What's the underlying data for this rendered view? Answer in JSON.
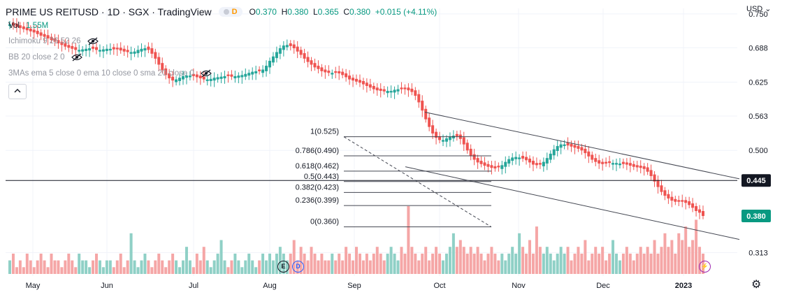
{
  "header": {
    "symbol": "PRIME US REITUSD · 1D · SGX · TradingView",
    "currency_badge": "D",
    "ohlc": {
      "o_label": "O",
      "o": "0.370",
      "h_label": "H",
      "h": "0.380",
      "l_label": "L",
      "l": "0.365",
      "c_label": "C",
      "c": "0.380",
      "change": "+0.015 (+4.11%)"
    }
  },
  "legend": {
    "vol_label": "Vol",
    "vol_value": "1.55M",
    "ichimoku": "Ichimoku 9 26 52 26",
    "bb": "BB 20 close 2 0",
    "mas": "3MAs ema 5 close 0 ema 10 close 0 sma 20 close 0"
  },
  "currency": "USD",
  "colors": {
    "up": "#26a69a",
    "down": "#ef5350",
    "vol_up": "#8fd0c6",
    "vol_down": "#f5a6a6",
    "price_tag_bg": "#089981"
  },
  "event_markers": [
    {
      "label": "E",
      "color": "#131722"
    },
    {
      "label": "D",
      "color": "#2962ff"
    }
  ],
  "chart_data": {
    "type": "candlestick",
    "y_ticks": [
      "0.750",
      "0.688",
      "0.625",
      "0.563",
      "0.500",
      "0.445",
      "0.380",
      "0.313"
    ],
    "y_range": [
      0.27,
      0.76
    ],
    "x_ticks": [
      "May",
      "Jun",
      "Jul",
      "Aug",
      "Sep",
      "Oct",
      "Nov",
      "Dec",
      "2023"
    ],
    "last_price": "0.380",
    "horizontal_line_label": "0.445",
    "horizontal_line_value": 0.445,
    "fib_levels": [
      {
        "label": "1(0.525)",
        "value": 0.525
      },
      {
        "label": "0.786(0.490)",
        "value": 0.49
      },
      {
        "label": "0.618(0.462)",
        "value": 0.462
      },
      {
        "label": "0.5(0.443)",
        "value": 0.443
      },
      {
        "label": "0.382(0.423)",
        "value": 0.423
      },
      {
        "label": "0.236(0.399)",
        "value": 0.399
      },
      {
        "label": "0(0.360)",
        "value": 0.36
      }
    ],
    "candles_close": [
      0.731,
      0.729,
      0.726,
      0.724,
      0.722,
      0.72,
      0.718,
      0.716,
      0.713,
      0.71,
      0.708,
      0.705,
      0.702,
      0.699,
      0.696,
      0.693,
      0.69,
      0.688,
      0.686,
      0.684,
      0.684,
      0.685,
      0.686,
      0.687,
      0.686,
      0.684,
      0.684,
      0.685,
      0.686,
      0.686,
      0.685,
      0.685,
      0.683,
      0.681,
      0.68,
      0.68,
      0.681,
      0.684,
      0.686,
      0.687,
      0.684,
      0.677,
      0.668,
      0.657,
      0.647,
      0.638,
      0.632,
      0.628,
      0.63,
      0.633,
      0.636,
      0.637,
      0.637,
      0.636,
      0.634,
      0.632,
      0.63,
      0.63,
      0.631,
      0.633,
      0.634,
      0.635,
      0.636,
      0.636,
      0.635,
      0.636,
      0.637,
      0.638,
      0.64,
      0.642,
      0.644,
      0.645,
      0.645,
      0.648,
      0.655,
      0.664,
      0.672,
      0.68,
      0.687,
      0.692,
      0.693,
      0.691,
      0.687,
      0.681,
      0.675,
      0.668,
      0.662,
      0.657,
      0.652,
      0.649,
      0.645,
      0.643,
      0.642,
      0.642,
      0.642,
      0.641,
      0.638,
      0.634,
      0.63,
      0.628,
      0.626,
      0.624,
      0.621,
      0.618,
      0.615,
      0.612,
      0.61,
      0.609,
      0.608,
      0.609,
      0.609,
      0.611,
      0.612,
      0.612,
      0.612,
      0.61,
      0.607,
      0.6,
      0.588,
      0.573,
      0.557,
      0.543,
      0.531,
      0.523,
      0.519,
      0.519,
      0.522,
      0.525,
      0.527,
      0.526,
      0.521,
      0.511,
      0.5,
      0.49,
      0.483,
      0.478,
      0.475,
      0.472,
      0.47,
      0.468,
      0.467,
      0.469,
      0.473,
      0.479,
      0.484,
      0.487,
      0.488,
      0.487,
      0.485,
      0.482,
      0.478,
      0.474,
      0.473,
      0.474,
      0.479,
      0.486,
      0.494,
      0.502,
      0.508,
      0.511,
      0.511,
      0.509,
      0.507,
      0.505,
      0.503,
      0.5,
      0.495,
      0.489,
      0.483,
      0.479,
      0.476,
      0.475,
      0.476,
      0.477,
      0.477,
      0.477,
      0.476,
      0.475,
      0.474,
      0.472,
      0.47,
      0.469,
      0.468,
      0.466,
      0.461,
      0.453,
      0.443,
      0.433,
      0.424,
      0.417,
      0.412,
      0.408,
      0.406,
      0.406,
      0.406,
      0.404,
      0.4,
      0.395,
      0.389,
      0.386,
      0.38
    ],
    "candles_up_flags": [
      1,
      0,
      0,
      0,
      0,
      0,
      0,
      0,
      0,
      0,
      0,
      0,
      0,
      0,
      0,
      0,
      0,
      0,
      0,
      0,
      1,
      1,
      1,
      1,
      0,
      0,
      1,
      1,
      1,
      1,
      0,
      0,
      0,
      0,
      0,
      1,
      1,
      1,
      1,
      1,
      0,
      0,
      0,
      0,
      0,
      0,
      0,
      0,
      1,
      1,
      1,
      1,
      1,
      0,
      0,
      0,
      0,
      1,
      1,
      1,
      1,
      1,
      1,
      0,
      0,
      1,
      1,
      1,
      1,
      1,
      1,
      1,
      0,
      1,
      1,
      1,
      1,
      1,
      1,
      1,
      1,
      0,
      0,
      0,
      0,
      0,
      0,
      0,
      0,
      0,
      0,
      0,
      0,
      1,
      0,
      0,
      0,
      0,
      0,
      0,
      0,
      0,
      0,
      0,
      0,
      0,
      0,
      0,
      0,
      1,
      1,
      1,
      1,
      0,
      0,
      0,
      0,
      0,
      0,
      0,
      0,
      0,
      0,
      0,
      0,
      1,
      1,
      1,
      1,
      0,
      0,
      0,
      0,
      0,
      0,
      0,
      0,
      0,
      0,
      0,
      0,
      0,
      1,
      1,
      1,
      1,
      1,
      1,
      0,
      0,
      0,
      0,
      0,
      0,
      1,
      1,
      1,
      1,
      1,
      1,
      1,
      0,
      0,
      0,
      0,
      0,
      0,
      0,
      0,
      0,
      0,
      0,
      0,
      0,
      1,
      1,
      1,
      0,
      0,
      0,
      0,
      0,
      0,
      0,
      0,
      0,
      0,
      0,
      0,
      0,
      0,
      0,
      0,
      0,
      0,
      0,
      0,
      0,
      0,
      0,
      0,
      0,
      0,
      1
    ],
    "volume_rel": [
      0.2,
      0.3,
      0.1,
      0.2,
      0.1,
      0.3,
      0.2,
      0.1,
      0.2,
      0.3,
      0.2,
      0.1,
      0.3,
      0.2,
      0.2,
      0.1,
      0.2,
      0.3,
      0.2,
      0.1,
      0.3,
      0.2,
      0.2,
      0.1,
      0.2,
      0.3,
      0.2,
      0.1,
      0.2,
      0.2,
      0.1,
      0.2,
      0.3,
      0.1,
      0.2,
      0.6,
      0.2,
      0.1,
      0.2,
      0.3,
      0.2,
      0.1,
      0.2,
      0.3,
      0.2,
      0.1,
      0.2,
      0.3,
      0.2,
      0.1,
      0.2,
      0.4,
      0.2,
      0.1,
      0.3,
      0.2,
      0.4,
      0.2,
      0.1,
      0.2,
      0.3,
      0.5,
      0.2,
      0.1,
      0.2,
      0.3,
      0.2,
      0.1,
      0.2,
      0.3,
      0.2,
      0.1,
      0.2,
      0.3,
      0.2,
      0.3,
      0.2,
      0.3,
      0.4,
      0.3,
      0.2,
      0.3,
      0.5,
      0.2,
      0.4,
      0.3,
      0.2,
      0.4,
      0.3,
      0.2,
      0.3,
      0.2,
      0.2,
      0.3,
      0.2,
      0.3,
      0.2,
      0.4,
      0.3,
      0.2,
      0.4,
      0.3,
      0.2,
      0.3,
      0.2,
      0.3,
      0.4,
      0.3,
      0.2,
      0.3,
      0.4,
      0.3,
      0.2,
      0.4,
      0.3,
      1.0,
      0.4,
      0.3,
      0.2,
      0.3,
      0.4,
      0.2,
      0.3,
      0.4,
      0.3,
      0.2,
      0.3,
      0.4,
      0.6,
      0.4,
      0.5,
      0.4,
      0.3,
      0.4,
      0.3,
      0.4,
      0.3,
      0.2,
      0.3,
      0.4,
      0.3,
      0.2,
      0.3,
      0.2,
      0.3,
      0.4,
      0.3,
      0.6,
      0.4,
      0.3,
      0.5,
      0.3,
      0.7,
      0.4,
      0.3,
      0.4,
      0.3,
      0.2,
      0.3,
      0.4,
      0.3,
      0.4,
      0.2,
      0.3,
      0.4,
      0.3,
      0.5,
      0.2,
      0.3,
      0.4,
      0.3,
      0.4,
      0.2,
      0.3,
      0.5,
      0.3,
      0.2,
      0.3,
      0.4,
      0.3,
      0.2,
      0.3,
      0.4,
      0.3,
      0.4,
      0.3,
      0.5,
      0.3,
      0.4,
      0.6,
      0.4,
      0.5,
      0.3,
      0.6,
      0.5,
      0.7,
      0.4,
      0.5,
      0.8,
      0.4,
      0.3,
      0.5,
      0.6,
      0.4,
      0.5,
      0.9,
      0.4
    ]
  }
}
